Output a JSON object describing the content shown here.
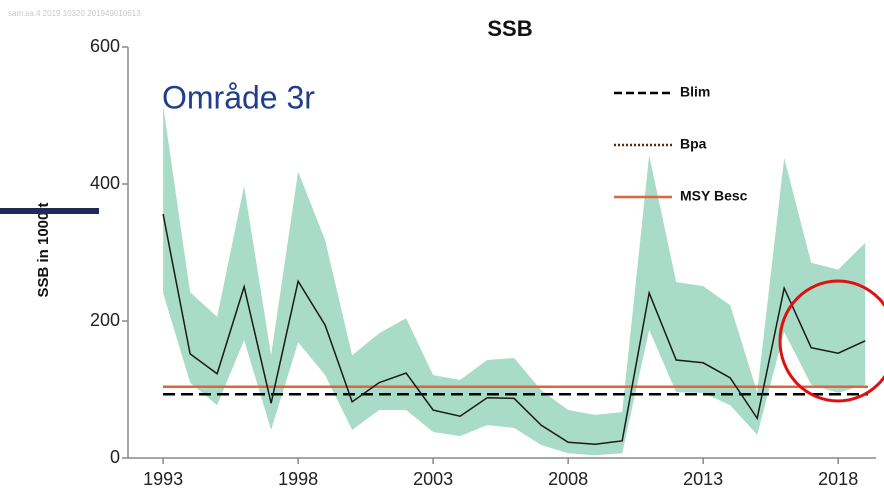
{
  "chart_data": {
    "type": "line",
    "title": "SSB",
    "watermark": "sam.sa.4 2019 10320 201949010613",
    "annotation": "Område 3r",
    "ylabel": "SSB in 1000 t",
    "x": [
      1993,
      1994,
      1995,
      1996,
      1997,
      1998,
      1999,
      2000,
      2001,
      2002,
      2003,
      2004,
      2005,
      2006,
      2007,
      2008,
      2009,
      2010,
      2011,
      2012,
      2013,
      2014,
      2015,
      2016,
      2017,
      2018,
      2019
    ],
    "series": [
      {
        "name": "SSB",
        "color": "#1a1a1a",
        "values": [
          356,
          152,
          123,
          250,
          80,
          258,
          194,
          82,
          110,
          124,
          70,
          61,
          88,
          87,
          48,
          23,
          20,
          25,
          241,
          143,
          139,
          117,
          58,
          248,
          161,
          153,
          171
        ]
      }
    ],
    "band": {
      "color": "#a8dcc8",
      "upper": [
        515,
        242,
        206,
        397,
        150,
        418,
        318,
        150,
        182,
        204,
        121,
        114,
        143,
        146,
        99,
        70,
        63,
        67,
        442,
        257,
        251,
        223,
        96,
        438,
        285,
        275,
        314
      ],
      "lower": [
        241,
        110,
        77,
        172,
        41,
        169,
        121,
        41,
        70,
        70,
        38,
        32,
        48,
        44,
        19,
        7,
        4,
        7,
        187,
        96,
        95,
        77,
        34,
        184,
        107,
        95,
        107
      ]
    },
    "reference_lines": [
      {
        "name": "Blim",
        "value": 93,
        "color": "#000000",
        "style": "dashed"
      },
      {
        "name": "Bpa",
        "value": 104,
        "color": "#5a2a10",
        "style": "dotted"
      },
      {
        "name": "MSY Besc",
        "value": 104,
        "color": "#e0643c",
        "style": "solid"
      }
    ],
    "xlim": [
      1991.7,
      2019.4
    ],
    "xticks": [
      1993,
      1998,
      2003,
      2008,
      2013,
      2018
    ],
    "ylim": [
      0,
      600
    ],
    "yticks": [
      0,
      200,
      400,
      600
    ]
  }
}
